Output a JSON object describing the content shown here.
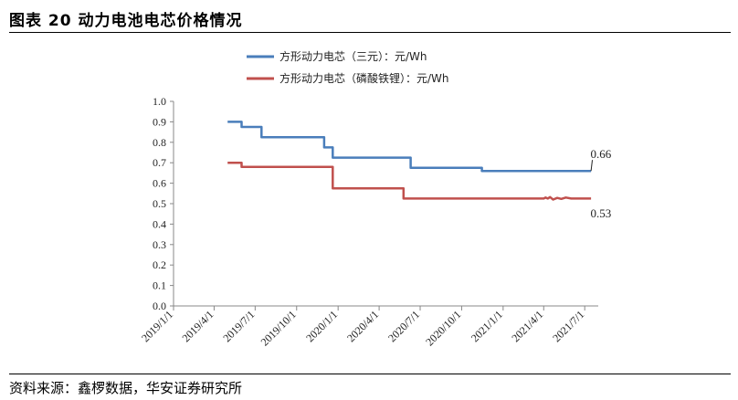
{
  "figure": {
    "title": "图表 20  动力电池电芯价格情况",
    "source": "资料来源：鑫椤数据，华安证券研究所"
  },
  "chart_data": {
    "type": "line",
    "ylim": [
      0,
      1.0
    ],
    "yticks": [
      "0.0",
      "0.1",
      "0.2",
      "0.3",
      "0.4",
      "0.5",
      "0.6",
      "0.7",
      "0.8",
      "0.9",
      "1.0"
    ],
    "xlim": [
      "2019-01-01",
      "2021-07-31"
    ],
    "xticks": [
      "2019/1/1",
      "2019/4/1",
      "2019/7/1",
      "2019/10/1",
      "2020/1/1",
      "2020/4/1",
      "2020/7/1",
      "2020/10/1",
      "2021/1/1",
      "2021/4/1",
      "2021/7/1"
    ],
    "grid": false,
    "legend": "top",
    "series": [
      {
        "name": "方形动力电芯（三元）：元/Wh",
        "color": "#4a7ebb",
        "points": [
          [
            "2019-05-01",
            0.9
          ],
          [
            "2019-06-01",
            0.9
          ],
          [
            "2019-06-01",
            0.875
          ],
          [
            "2019-07-15",
            0.875
          ],
          [
            "2019-07-15",
            0.825
          ],
          [
            "2019-12-01",
            0.825
          ],
          [
            "2019-12-01",
            0.775
          ],
          [
            "2019-12-20",
            0.775
          ],
          [
            "2019-12-20",
            0.725
          ],
          [
            "2020-06-10",
            0.725
          ],
          [
            "2020-06-10",
            0.675
          ],
          [
            "2020-11-15",
            0.675
          ],
          [
            "2020-11-15",
            0.66
          ],
          [
            "2021-07-15",
            0.66
          ]
        ]
      },
      {
        "name": "方形动力电芯（磷酸铁锂）：元/Wh",
        "color": "#c0504d",
        "points": [
          [
            "2019-05-01",
            0.7
          ],
          [
            "2019-06-01",
            0.7
          ],
          [
            "2019-06-01",
            0.68
          ],
          [
            "2019-12-20",
            0.68
          ],
          [
            "2019-12-20",
            0.575
          ],
          [
            "2020-05-25",
            0.575
          ],
          [
            "2020-05-25",
            0.525
          ],
          [
            "2021-04-01",
            0.525
          ],
          [
            "2021-04-05",
            0.53
          ],
          [
            "2021-04-10",
            0.525
          ],
          [
            "2021-04-15",
            0.532
          ],
          [
            "2021-04-22",
            0.52
          ],
          [
            "2021-05-01",
            0.528
          ],
          [
            "2021-05-10",
            0.523
          ],
          [
            "2021-05-20",
            0.53
          ],
          [
            "2021-06-01",
            0.525
          ],
          [
            "2021-07-15",
            0.525
          ]
        ]
      }
    ],
    "annotations": [
      {
        "text": "0.66",
        "series": 0,
        "at": [
          "2021-07-15",
          0.66
        ],
        "label_at": [
          "2021-07-30",
          0.74
        ]
      },
      {
        "text": "0.53",
        "series": 1,
        "at": [
          "2021-07-15",
          0.525
        ],
        "label_at": [
          "2021-07-30",
          0.45
        ]
      }
    ]
  }
}
